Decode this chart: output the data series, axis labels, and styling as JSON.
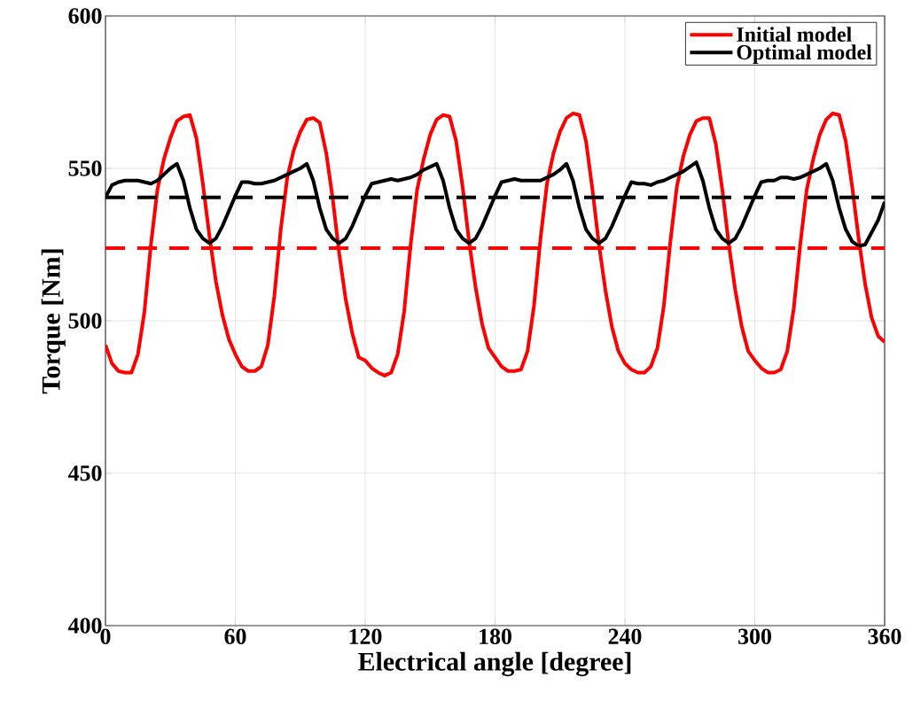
{
  "chart_data": {
    "type": "line",
    "xlabel": "Electrical angle [degree]",
    "ylabel": "Torque [Nm]",
    "x": [
      0,
      3,
      6,
      9,
      12,
      15,
      18,
      21,
      24,
      27,
      30,
      33,
      36,
      39,
      42,
      45,
      48,
      51,
      54,
      57,
      60,
      63,
      66,
      69,
      72,
      75,
      78,
      81,
      84,
      87,
      90,
      93,
      96,
      99,
      102,
      105,
      108,
      111,
      114,
      117,
      120,
      123,
      126,
      129,
      132,
      135,
      138,
      141,
      144,
      147,
      150,
      153,
      156,
      159,
      162,
      165,
      168,
      171,
      174,
      177,
      180,
      183,
      186,
      189,
      192,
      195,
      198,
      201,
      204,
      207,
      210,
      213,
      216,
      219,
      222,
      225,
      228,
      231,
      234,
      237,
      240,
      243,
      246,
      249,
      252,
      255,
      258,
      261,
      264,
      267,
      270,
      273,
      276,
      279,
      282,
      285,
      288,
      291,
      294,
      297,
      300,
      303,
      306,
      309,
      312,
      315,
      318,
      321,
      324,
      327,
      330,
      333,
      336,
      339,
      342,
      345,
      348,
      351,
      354,
      357,
      360
    ],
    "series": [
      {
        "name": "Initial model",
        "color": "#ff0000",
        "values": [
          492,
          486,
          483.5,
          483,
          483,
          489,
          503,
          525,
          543,
          553,
          560,
          565.5,
          567,
          567.5,
          560,
          545,
          528,
          513,
          502,
          494,
          489,
          485,
          483.5,
          483.5,
          485,
          492,
          508,
          530,
          547,
          556,
          562,
          566,
          566.5,
          565,
          555,
          540,
          522,
          507,
          496,
          488,
          487,
          484.5,
          483,
          482,
          483,
          489,
          503,
          525,
          543,
          553,
          561,
          566,
          567.5,
          567,
          559,
          544,
          526,
          511,
          499,
          491,
          488,
          485,
          483.5,
          483.5,
          484,
          490,
          505,
          527,
          545,
          555,
          562,
          566.5,
          568,
          567.5,
          559,
          543,
          525,
          510,
          498,
          490,
          486,
          484,
          483,
          483,
          485,
          491,
          505,
          526,
          544,
          554,
          561,
          565.5,
          566.5,
          566.5,
          558,
          543,
          525,
          510,
          498,
          490,
          487,
          484.5,
          483,
          483,
          484,
          490,
          504,
          525,
          543,
          553,
          561,
          566,
          568,
          567.5,
          559,
          544,
          527,
          512,
          501,
          495,
          493
        ]
      },
      {
        "name": "Optimal model",
        "color": "#000000",
        "values": [
          540.5,
          544.5,
          545.5,
          546,
          546,
          546,
          545.5,
          545,
          546,
          548,
          550,
          551.5,
          546,
          537,
          530,
          527,
          525.5,
          527,
          531,
          536,
          541,
          545.5,
          545.5,
          545,
          545,
          545.5,
          546,
          547,
          548,
          549,
          550,
          551.5,
          546,
          537,
          530,
          527,
          525.5,
          527,
          531,
          536,
          541,
          545,
          545.5,
          546,
          546.5,
          546,
          546.5,
          547,
          548,
          549.5,
          550.5,
          551.5,
          546,
          537,
          530,
          527,
          525.5,
          527,
          531,
          536,
          541,
          545.5,
          546,
          546.5,
          546,
          546,
          546,
          546,
          547,
          548,
          549.5,
          551.5,
          546,
          537,
          530,
          527,
          525.5,
          527,
          531,
          536,
          541,
          545.5,
          545,
          545,
          544.5,
          545.5,
          546,
          547,
          548,
          549,
          550.5,
          552,
          546,
          537,
          530,
          527,
          525.5,
          527,
          531,
          536,
          541,
          545.5,
          546,
          546,
          547,
          547,
          546.5,
          547,
          548,
          549,
          550,
          551.5,
          546,
          537,
          530,
          526,
          524.5,
          525,
          529,
          533,
          539
        ]
      }
    ],
    "xlim": [
      0,
      360
    ],
    "ylim": [
      400,
      600
    ],
    "xticks": [
      0,
      60,
      120,
      180,
      240,
      300,
      360
    ],
    "yticks": [
      400,
      450,
      500,
      550,
      600
    ],
    "ref_lines": [
      {
        "axis": "y",
        "value": 540.5,
        "color": "#000000",
        "line_style": "dashed"
      },
      {
        "axis": "y",
        "value": 523.8,
        "color": "#ff0000",
        "line_style": "dashed"
      }
    ],
    "grid": true,
    "legend": "top right",
    "line_style": "solid",
    "marker": "none"
  }
}
